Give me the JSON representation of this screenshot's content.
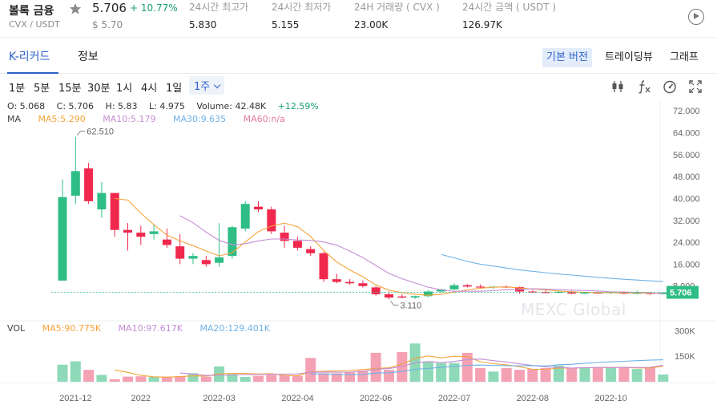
{
  "ticker": {
    "name": "볼록 금융",
    "pair": "CVX / USDT",
    "price": "5.706",
    "change": "+ 10.77%",
    "usd_price": "$ 5.70",
    "stats": [
      {
        "label": "24시간 최고가",
        "value": "5.830"
      },
      {
        "label": "24시간 최저가",
        "value": "5.155"
      },
      {
        "label": "24H 거래량 ( CVX )",
        "value": "23.00K"
      },
      {
        "label": "24시간 금액 ( USDT )",
        "value": "126.97K"
      }
    ],
    "icons": {
      "favorite": "star-icon",
      "play": "play-circle-icon"
    }
  },
  "tabs": {
    "items": [
      "K-리커드",
      "정보"
    ],
    "active": "K-리커드",
    "views": [
      "기본 버전",
      "트레이딩뷰",
      "그래프"
    ],
    "active_view": "기본 버전"
  },
  "timeframes": {
    "items": [
      "1분",
      "5분",
      "15분",
      "30분",
      "1시",
      "4시",
      "1일"
    ],
    "selected": "1주",
    "tools": [
      "candle-indicator-icon",
      "function-icon",
      "gauge-icon",
      "fullscreen-icon"
    ]
  },
  "legend": {
    "ohlc": {
      "o": "O: 5.068",
      "c": "C: 5.706",
      "h": "H: 5.83",
      "l": "L: 4.975",
      "volume": "Volume: 42.48K",
      "change": "+12.59%"
    },
    "ma_title": "MA",
    "ma5": "MA5:5.290",
    "ma10": "MA10:5.179",
    "ma30": "MA30:9.635",
    "ma60": "MA60:n/a",
    "vol_title": "VOL",
    "vol_ma5": "MA5:90.775K",
    "vol_ma10": "MA10:97.617K",
    "vol_ma20": "MA20:129.401K"
  },
  "watermark": "MEXC Global",
  "colors": {
    "up": "#2ebd85",
    "down": "#f0284d",
    "up_volume": "#8ed9b7",
    "down_volume": "#f4a1b4",
    "accent": "#2d63c8",
    "ma5": "#f5a33a",
    "ma10": "#c48ed4",
    "ma30": "#6fb2e8",
    "ma60": "#e57b9b"
  },
  "chart_data": {
    "type": "candlestick",
    "interval": "1주",
    "price_axis": {
      "ticks": [
        8,
        16,
        24,
        32,
        40,
        48,
        56,
        64,
        72
      ],
      "tick_labels": [
        "8.000",
        "16.000",
        "24.000",
        "32.000",
        "40.000",
        "48.000",
        "56.000",
        "64.000",
        "72.000"
      ],
      "range": [
        0,
        75
      ]
    },
    "volume_axis": {
      "ticks": [
        150000,
        300000
      ],
      "tick_labels": [
        "150K",
        "300K"
      ],
      "range": [
        0,
        330000
      ]
    },
    "x_axis_labels": [
      "2021-12",
      "2022",
      "2022-03",
      "2022-04",
      "2022-06",
      "2022-07",
      "2022-08",
      "2022-10"
    ],
    "x_label_candle_index": [
      1,
      6,
      12,
      18,
      24,
      30,
      36,
      42
    ],
    "last_price_label": "5.706",
    "high_marker": {
      "label": "62.510",
      "candle_index": 1
    },
    "low_marker": {
      "label": "3.110",
      "candle_index": 25
    },
    "candles": [
      {
        "o": 10.0,
        "h": 47.0,
        "l": 10.0,
        "c": 40.5
      },
      {
        "o": 41.0,
        "h": 62.51,
        "l": 38.0,
        "c": 50.0
      },
      {
        "o": 51.0,
        "h": 53.0,
        "l": 38.0,
        "c": 39.0
      },
      {
        "o": 36.0,
        "h": 46.0,
        "l": 33.0,
        "c": 42.0
      },
      {
        "o": 42.0,
        "h": 42.0,
        "l": 26.0,
        "c": 28.5
      },
      {
        "o": 28.5,
        "h": 31.0,
        "l": 21.0,
        "c": 27.5
      },
      {
        "o": 27.5,
        "h": 30.0,
        "l": 23.0,
        "c": 26.0
      },
      {
        "o": 27.0,
        "h": 30.5,
        "l": 25.0,
        "c": 28.0
      },
      {
        "o": 25.0,
        "h": 29.0,
        "l": 22.0,
        "c": 23.0
      },
      {
        "o": 22.5,
        "h": 27.0,
        "l": 16.0,
        "c": 18.0
      },
      {
        "o": 18.0,
        "h": 20.0,
        "l": 16.0,
        "c": 19.0
      },
      {
        "o": 17.5,
        "h": 19.0,
        "l": 15.0,
        "c": 16.0
      },
      {
        "o": 16.5,
        "h": 31.0,
        "l": 15.0,
        "c": 18.5
      },
      {
        "o": 19.0,
        "h": 30.0,
        "l": 18.0,
        "c": 29.5
      },
      {
        "o": 29.0,
        "h": 39.0,
        "l": 28.0,
        "c": 38.0
      },
      {
        "o": 37.0,
        "h": 39.0,
        "l": 35.0,
        "c": 36.0
      },
      {
        "o": 36.0,
        "h": 37.0,
        "l": 27.0,
        "c": 28.0
      },
      {
        "o": 27.5,
        "h": 30.0,
        "l": 22.0,
        "c": 24.5
      },
      {
        "o": 24.5,
        "h": 26.0,
        "l": 21.0,
        "c": 22.0
      },
      {
        "o": 21.5,
        "h": 22.5,
        "l": 19.0,
        "c": 20.0
      },
      {
        "o": 20.0,
        "h": 20.5,
        "l": 9.5,
        "c": 10.5
      },
      {
        "o": 10.5,
        "h": 12.5,
        "l": 9.0,
        "c": 9.5
      },
      {
        "o": 9.5,
        "h": 10.5,
        "l": 8.5,
        "c": 9.0
      },
      {
        "o": 9.0,
        "h": 10.0,
        "l": 7.5,
        "c": 8.0
      },
      {
        "o": 7.5,
        "h": 8.0,
        "l": 4.5,
        "c": 5.0
      },
      {
        "o": 5.0,
        "h": 6.0,
        "l": 3.11,
        "c": 3.8
      },
      {
        "o": 4.2,
        "h": 5.0,
        "l": 3.5,
        "c": 3.8
      },
      {
        "o": 3.8,
        "h": 4.5,
        "l": 3.3,
        "c": 4.3
      },
      {
        "o": 4.3,
        "h": 6.5,
        "l": 4.0,
        "c": 6.0
      },
      {
        "o": 6.0,
        "h": 7.0,
        "l": 5.5,
        "c": 6.8
      },
      {
        "o": 6.8,
        "h": 9.0,
        "l": 6.5,
        "c": 8.3
      },
      {
        "o": 8.3,
        "h": 8.8,
        "l": 7.5,
        "c": 7.8
      },
      {
        "o": 7.8,
        "h": 8.6,
        "l": 7.0,
        "c": 7.5
      },
      {
        "o": 7.5,
        "h": 8.0,
        "l": 7.0,
        "c": 7.8
      },
      {
        "o": 7.8,
        "h": 8.2,
        "l": 7.3,
        "c": 7.6
      },
      {
        "o": 7.6,
        "h": 7.8,
        "l": 5.2,
        "c": 6.0
      },
      {
        "o": 6.0,
        "h": 6.5,
        "l": 5.5,
        "c": 5.8
      },
      {
        "o": 5.8,
        "h": 6.4,
        "l": 5.4,
        "c": 5.6
      },
      {
        "o": 5.6,
        "h": 6.2,
        "l": 5.3,
        "c": 5.9
      },
      {
        "o": 6.0,
        "h": 6.3,
        "l": 5.0,
        "c": 5.3
      },
      {
        "o": 5.3,
        "h": 5.8,
        "l": 5.0,
        "c": 5.6
      },
      {
        "o": 5.6,
        "h": 5.9,
        "l": 5.2,
        "c": 5.4
      },
      {
        "o": 5.4,
        "h": 6.0,
        "l": 5.1,
        "c": 5.8
      },
      {
        "o": 5.8,
        "h": 6.1,
        "l": 5.0,
        "c": 5.2
      },
      {
        "o": 5.2,
        "h": 6.3,
        "l": 5.0,
        "c": 5.5
      },
      {
        "o": 5.5,
        "h": 5.8,
        "l": 4.8,
        "c": 5.1
      },
      {
        "o": 5.068,
        "h": 5.83,
        "l": 4.975,
        "c": 5.706
      }
    ],
    "volumes": [
      100000,
      120000,
      70000,
      40000,
      15000,
      30000,
      32000,
      28000,
      30000,
      32000,
      50000,
      30000,
      90000,
      45000,
      28000,
      35000,
      40000,
      40000,
      35000,
      140000,
      50000,
      50000,
      55000,
      65000,
      170000,
      70000,
      175000,
      225000,
      120000,
      110000,
      110000,
      170000,
      80000,
      60000,
      80000,
      70000,
      75000,
      80000,
      95000,
      80000,
      85000,
      80000,
      80000,
      85000,
      75000,
      85000,
      42480
    ],
    "ma5": [
      null,
      null,
      null,
      null,
      40.0,
      39.4,
      34.6,
      30.4,
      26.6,
      24.5,
      22.8,
      20.8,
      19.0,
      20.2,
      24.1,
      27.9,
      29.9,
      31.0,
      29.7,
      26.1,
      21.0,
      16.8,
      13.9,
      11.4,
      8.4,
      6.5,
      5.6,
      5.0,
      4.6,
      5.0,
      5.8,
      6.6,
      7.2,
      7.6,
      7.7,
      7.3,
      6.9,
      6.6,
      6.2,
      5.9,
      5.7,
      5.6,
      5.6,
      5.5,
      5.5,
      5.4,
      5.29
    ],
    "ma10": [
      null,
      null,
      null,
      null,
      null,
      null,
      null,
      null,
      null,
      33.7,
      31.1,
      27.7,
      24.7,
      23.1,
      23.5,
      24.5,
      25.2,
      25.2,
      24.8,
      24.7,
      24.1,
      22.9,
      20.8,
      18.4,
      15.5,
      12.6,
      10.7,
      9.1,
      7.6,
      6.6,
      6.1,
      6.1,
      6.1,
      6.3,
      6.7,
      6.8,
      7.0,
      6.9,
      6.7,
      6.5,
      6.4,
      6.2,
      5.9,
      5.8,
      5.7,
      5.6,
      5.18
    ],
    "ma30": [
      null,
      null,
      null,
      null,
      null,
      null,
      null,
      null,
      null,
      null,
      null,
      null,
      null,
      null,
      null,
      null,
      null,
      null,
      null,
      null,
      null,
      null,
      null,
      null,
      null,
      null,
      null,
      null,
      null,
      19.5,
      18.3,
      17.0,
      16.0,
      15.3,
      14.6,
      13.9,
      13.4,
      12.9,
      12.4,
      12.0,
      11.6,
      11.2,
      10.8,
      10.5,
      10.2,
      9.9,
      9.635
    ],
    "vol_ma5": [
      null,
      null,
      null,
      null,
      69000,
      55000,
      37400,
      29000,
      27000,
      30400,
      34400,
      34000,
      46400,
      49400,
      48600,
      45600,
      47600,
      37600,
      35600,
      58000,
      61000,
      63000,
      66000,
      72000,
      78000,
      82000,
      103000,
      137000,
      152000,
      140000,
      150000,
      147000,
      118000,
      106000,
      100000,
      88000,
      73000,
      73000,
      80000,
      80000,
      82000,
      84000,
      84000,
      84000,
      81000,
      81000,
      90775
    ],
    "vol_ma10": [
      null,
      null,
      null,
      null,
      null,
      null,
      null,
      null,
      null,
      50700,
      45700,
      36700,
      38700,
      39200,
      42500,
      43000,
      43800,
      45000,
      45500,
      56300,
      56300,
      56300,
      56800,
      60800,
      73800,
      77300,
      90300,
      111300,
      118800,
      112800,
      118800,
      130800,
      133300,
      123800,
      115800,
      105800,
      95800,
      86800,
      84300,
      80800,
      82300,
      83300,
      83300,
      84300,
      83300,
      84800,
      97617
    ],
    "vol_ma20": [
      null,
      null,
      null,
      null,
      null,
      null,
      null,
      null,
      null,
      null,
      null,
      null,
      null,
      null,
      null,
      null,
      null,
      null,
      null,
      46000,
      45500,
      42500,
      41800,
      43000,
      51000,
      53000,
      60300,
      73500,
      78100,
      84600,
      89600,
      96900,
      98100,
      95900,
      94700,
      93900,
      94700,
      93000,
      100000,
      103000,
      108000,
      113000,
      117000,
      120000,
      124000,
      127000,
      129401
    ]
  }
}
